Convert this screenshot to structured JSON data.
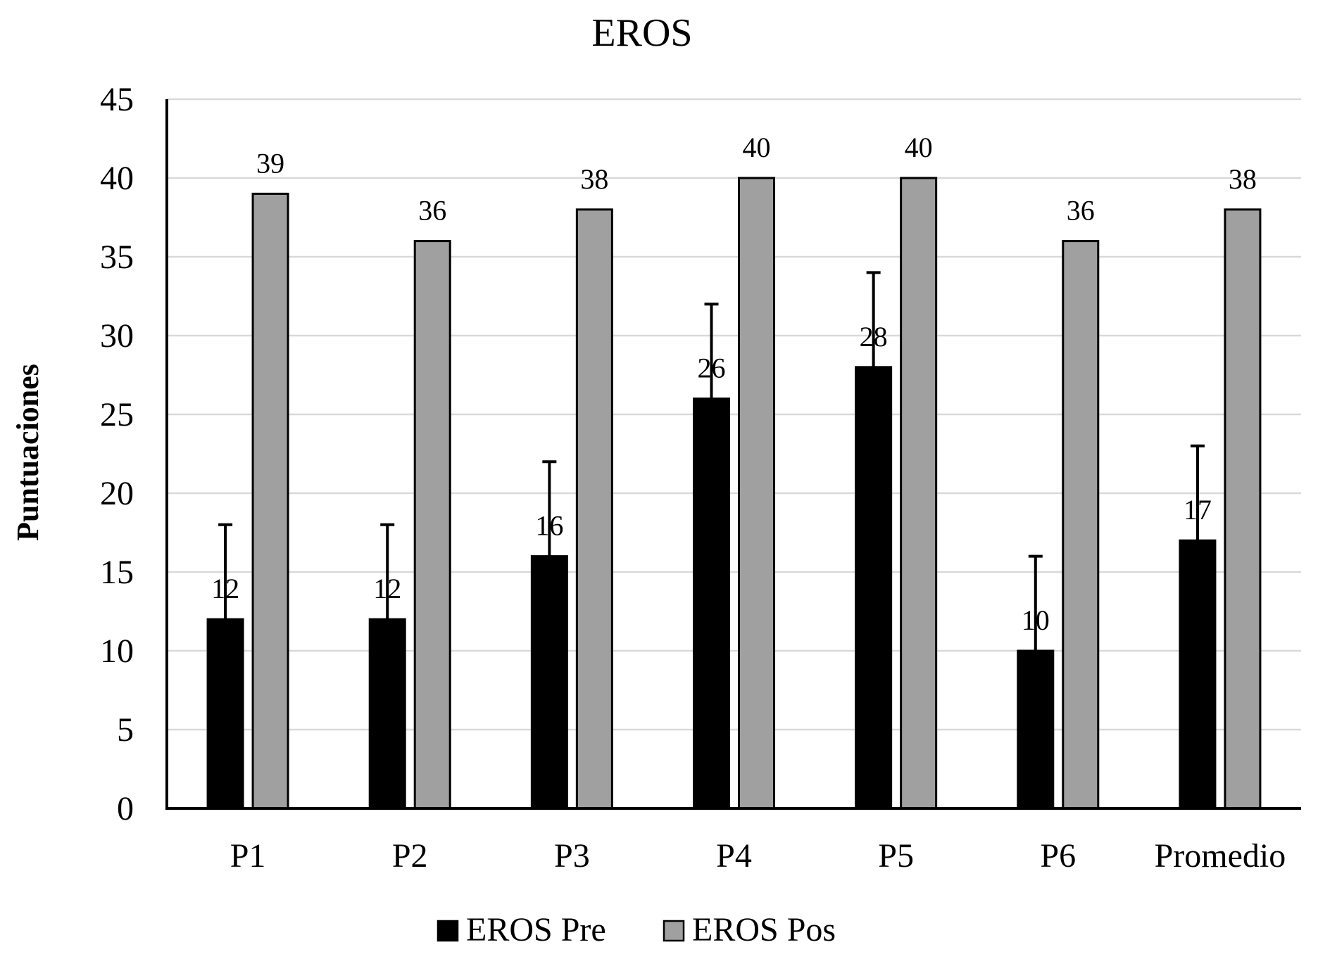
{
  "chart_data": {
    "type": "bar",
    "title": "EROS",
    "xlabel": "",
    "ylabel": "Puntuaciones",
    "ylim": [
      0,
      45
    ],
    "yticks": [
      0,
      5,
      10,
      15,
      20,
      25,
      30,
      35,
      40,
      45
    ],
    "grid": true,
    "legend_position": "bottom",
    "categories": [
      "P1",
      "P2",
      "P3",
      "P4",
      "P5",
      "P6",
      "Promedio"
    ],
    "series": [
      {
        "name": "EROS Pre",
        "color": "#000000",
        "values": [
          12,
          12,
          16,
          26,
          28,
          10,
          17
        ],
        "error_plus": [
          6,
          6,
          6,
          6,
          6,
          6,
          6
        ]
      },
      {
        "name": "EROS Pos",
        "color": "#a0a0a0",
        "values": [
          39,
          36,
          38,
          40,
          40,
          36,
          38
        ]
      }
    ]
  }
}
